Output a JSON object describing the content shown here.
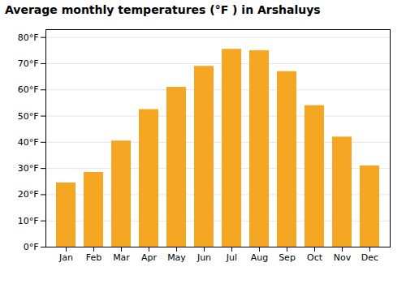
{
  "chart_data": {
    "type": "bar",
    "title": "Average monthly temperatures (°F ) in Arshaluys",
    "categories": [
      "Jan",
      "Feb",
      "Mar",
      "Apr",
      "May",
      "Jun",
      "Jul",
      "Aug",
      "Sep",
      "Oct",
      "Nov",
      "Dec"
    ],
    "values": [
      24.5,
      28.5,
      40.5,
      52.5,
      61,
      69,
      75.5,
      75,
      67,
      54,
      42,
      31
    ],
    "color": "#F5A623",
    "ylim": [
      0,
      83
    ],
    "yticks": [
      {
        "value": 0,
        "label": "0°F"
      },
      {
        "value": 10,
        "label": "10°F"
      },
      {
        "value": 20,
        "label": "20°F"
      },
      {
        "value": 30,
        "label": "30°F"
      },
      {
        "value": 40,
        "label": "40°F"
      },
      {
        "value": 50,
        "label": "50°F"
      },
      {
        "value": 60,
        "label": "60°F"
      },
      {
        "value": 70,
        "label": "70°F"
      },
      {
        "value": 80,
        "label": "80°F"
      }
    ],
    "grid": true
  }
}
